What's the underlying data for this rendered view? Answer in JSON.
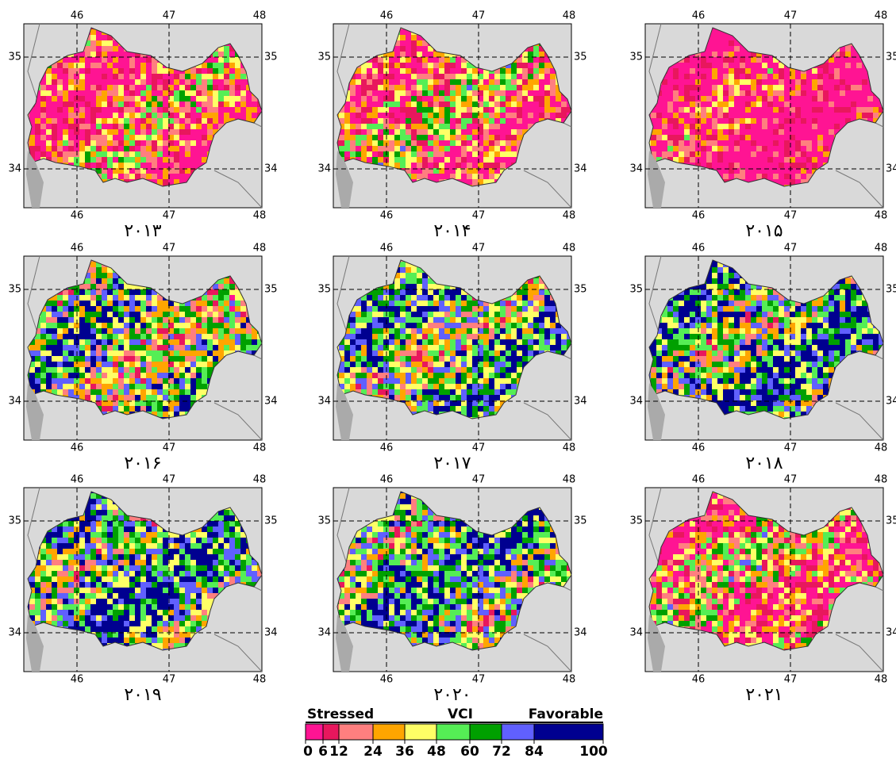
{
  "panels": [
    {
      "label": "۲۰۱۳"
    },
    {
      "label": "۲۰۱۴"
    },
    {
      "label": "۲۰۱۵"
    },
    {
      "label": "۲۰۱۶"
    },
    {
      "label": "۲۰۱۷"
    },
    {
      "label": "۲۰۱۸"
    },
    {
      "label": "۲۰۱۹"
    },
    {
      "label": "۲۰۲۰"
    },
    {
      "label": "۲۰۲۱"
    }
  ],
  "lon_labels": [
    "46",
    "47",
    "48"
  ],
  "lat_labels": [
    "35",
    "34"
  ],
  "legend": {
    "left": "Stressed",
    "title": "VCI",
    "right": "Favorable",
    "ticks": [
      0,
      6,
      12,
      24,
      36,
      48,
      60,
      72,
      84,
      100
    ],
    "colors": [
      "#ff1493",
      "#e8175d",
      "#ff7f7f",
      "#ffa500",
      "#ffff66",
      "#55ee55",
      "#00a000",
      "#6060ff",
      "#000090"
    ]
  }
}
